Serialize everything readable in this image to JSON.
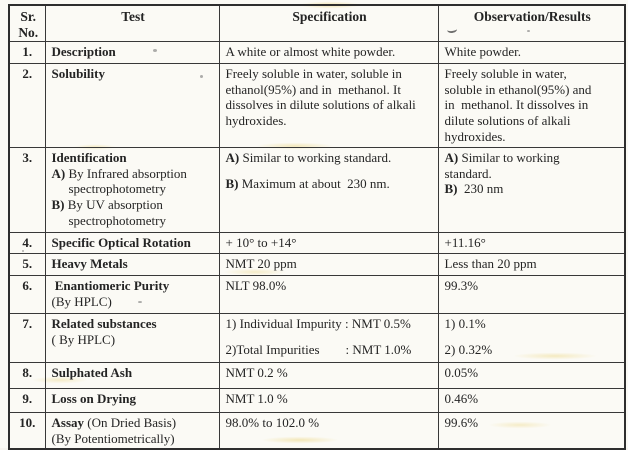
{
  "doc": {
    "kind": "scanned specification results table",
    "paper_color": "#fbfaf5",
    "border_color": "#2e2e2e",
    "text_color": "#242424",
    "highlight_color": "#e7cb5c"
  },
  "table": {
    "headers": [
      {
        "lines": [
          "Sr.",
          "No."
        ]
      },
      {
        "lines": [
          "Test"
        ]
      },
      {
        "lines": [
          "Specification"
        ]
      },
      {
        "lines": [
          "Observation/Results"
        ]
      }
    ],
    "rows": [
      {
        "no": "1.",
        "test": [
          {
            "seg": [
              {
                "t": "Description",
                "b": true
              }
            ]
          }
        ],
        "spec": [
          {
            "seg": [
              {
                "t": "A white or almost white powder."
              }
            ]
          }
        ],
        "obs": [
          {
            "seg": [
              {
                "t": "White powder."
              }
            ]
          }
        ]
      },
      {
        "no": "2.",
        "test": [
          {
            "seg": [
              {
                "t": "Solubility",
                "b": true
              }
            ]
          }
        ],
        "spec": [
          {
            "seg": [
              {
                "t": "Freely soluble in water, soluble in"
              }
            ]
          },
          {
            "seg": [
              {
                "t": "ethanol(95%) and in  methanol. It"
              }
            ]
          },
          {
            "seg": [
              {
                "t": "dissolves in dilute solutions of alkali"
              }
            ]
          },
          {
            "seg": [
              {
                "t": "hydroxides."
              }
            ]
          }
        ],
        "obs": [
          {
            "seg": [
              {
                "t": "Freely soluble in water,"
              }
            ]
          },
          {
            "seg": [
              {
                "t": "soluble in ethanol(95%) and"
              }
            ]
          },
          {
            "seg": [
              {
                "t": "in  methanol. It dissolves in"
              }
            ]
          },
          {
            "seg": [
              {
                "t": "dilute solutions of alkali"
              }
            ]
          },
          {
            "seg": [
              {
                "t": "hydroxides."
              }
            ]
          }
        ]
      },
      {
        "no": "3.",
        "test": [
          {
            "seg": [
              {
                "t": "Identification",
                "b": true
              }
            ]
          },
          {
            "seg": [
              {
                "t": "A)",
                "b": true
              },
              {
                "t": " By Infrared absorption"
              }
            ]
          },
          {
            "seg": [
              {
                "t": "spectrophotometry"
              }
            ],
            "ind": 1
          },
          {
            "seg": [
              {
                "t": "B)",
                "b": true
              },
              {
                "t": " By UV absorption"
              }
            ]
          },
          {
            "seg": [
              {
                "t": "spectrophotometry"
              }
            ],
            "ind": 1
          }
        ],
        "spec": [
          {
            "seg": [
              {
                "t": "A)",
                "b": true
              },
              {
                "t": " Similar to working standard."
              }
            ]
          },
          {
            "seg": [
              {
                "t": "B)",
                "b": true
              },
              {
                "t": " Maximum at about  230 nm."
              }
            ],
            "gap": 1
          }
        ],
        "obs": [
          {
            "seg": [
              {
                "t": "A)",
                "b": true
              },
              {
                "t": " Similar to working"
              }
            ]
          },
          {
            "seg": [
              {
                "t": "standard."
              }
            ]
          },
          {
            "seg": [
              {
                "t": "B)",
                "b": true
              },
              {
                "t": "  230 nm"
              }
            ]
          }
        ]
      },
      {
        "no": "4.",
        "test": [
          {
            "seg": [
              {
                "t": "Specific Optical Rotation",
                "b": true
              }
            ]
          }
        ],
        "spec": [
          {
            "seg": [
              {
                "t": "+ 10° to +14°"
              }
            ]
          }
        ],
        "obs": [
          {
            "seg": [
              {
                "t": "+11.16°"
              }
            ]
          }
        ]
      },
      {
        "no": "5.",
        "test": [
          {
            "seg": [
              {
                "t": "Heavy Metals",
                "b": true
              }
            ]
          }
        ],
        "spec": [
          {
            "seg": [
              {
                "t": "NMT 20 ppm"
              }
            ]
          }
        ],
        "obs": [
          {
            "seg": [
              {
                "t": "Less than 20 ppm"
              }
            ]
          }
        ]
      },
      {
        "no": "6.",
        "test": [
          {
            "seg": [
              {
                "t": " Enantiomeric Purity",
                "b": true
              }
            ]
          },
          {
            "seg": [
              {
                "t": "(By HPLC)"
              }
            ]
          }
        ],
        "spec": [
          {
            "seg": [
              {
                "t": "NLT 98.0%"
              }
            ]
          }
        ],
        "obs": [
          {
            "seg": [
              {
                "t": "99.3%"
              }
            ]
          }
        ]
      },
      {
        "no": "7.",
        "test": [
          {
            "seg": [
              {
                "t": "Related substances",
                "b": true
              }
            ]
          },
          {
            "seg": [
              {
                "t": "( By HPLC)"
              }
            ]
          }
        ],
        "spec": [
          {
            "seg": [
              {
                "t": "1) Individual Impurity : NMT 0.5%"
              }
            ]
          },
          {
            "seg": [
              {
                "t": "2)Total Impurities        : NMT 1.0%"
              }
            ],
            "gap": 1
          }
        ],
        "obs": [
          {
            "seg": [
              {
                "t": "1) 0.1%"
              }
            ]
          },
          {
            "seg": [
              {
                "t": "2) 0.32%"
              }
            ],
            "gap": 1
          }
        ]
      },
      {
        "no": "8.",
        "test": [
          {
            "seg": [
              {
                "t": "Sulphated Ash",
                "b": true
              }
            ]
          }
        ],
        "spec": [
          {
            "seg": [
              {
                "t": "NMT 0.2 %"
              }
            ]
          }
        ],
        "obs": [
          {
            "seg": [
              {
                "t": "0.05%"
              }
            ]
          }
        ]
      },
      {
        "no": "9.",
        "test": [
          {
            "seg": [
              {
                "t": "Loss on Drying",
                "b": true
              }
            ]
          }
        ],
        "spec": [
          {
            "seg": [
              {
                "t": "NMT 1.0 %"
              }
            ]
          }
        ],
        "obs": [
          {
            "seg": [
              {
                "t": "0.46%"
              }
            ]
          }
        ]
      },
      {
        "no": "10.",
        "test": [
          {
            "seg": [
              {
                "t": "Assay",
                "b": true
              },
              {
                "t": " (On Dried Basis)"
              }
            ]
          },
          {
            "seg": [
              {
                "t": "(By Potentiometrically)"
              }
            ]
          }
        ],
        "spec": [
          {
            "seg": [
              {
                "t": "98.0% to 102.0 %"
              }
            ]
          }
        ],
        "obs": [
          {
            "seg": [
              {
                "t": "99.6%"
              }
            ]
          }
        ]
      }
    ]
  }
}
